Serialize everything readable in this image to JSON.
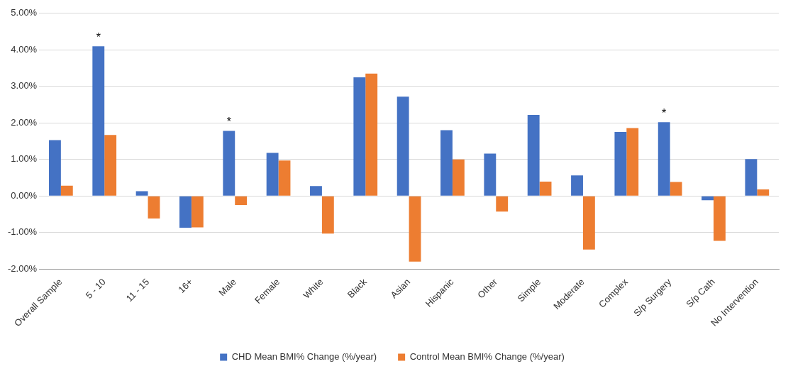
{
  "chart_data": {
    "type": "bar",
    "categories": [
      "Overall Sample",
      "5 - 10",
      "11 - 15",
      "16+",
      "Male",
      "Female",
      "White",
      "Black",
      "Asian",
      "Hispanic",
      "Other",
      "Simple",
      "Moderate",
      "Complex",
      "S/p Surgery",
      "S/p Cath",
      "No Intervention"
    ],
    "series": [
      {
        "name": "CHD Mean BMI% Change (%/year)",
        "color": "#4472c4",
        "values": [
          1.53,
          4.1,
          0.13,
          -0.87,
          1.78,
          1.18,
          0.27,
          3.25,
          2.72,
          1.8,
          1.16,
          2.22,
          0.56,
          1.75,
          2.02,
          -0.12,
          1.01
        ]
      },
      {
        "name": "Control Mean BMI% Change (%/year)",
        "color": "#ed7d31",
        "values": [
          0.28,
          1.67,
          -0.62,
          -0.86,
          -0.25,
          0.97,
          -1.03,
          3.35,
          -1.8,
          1.0,
          -0.43,
          0.39,
          -1.47,
          1.86,
          0.38,
          -1.23,
          0.18
        ]
      }
    ],
    "ylim": [
      -2,
      5
    ],
    "yticks": [
      {
        "value": -2,
        "label": "-2.00%"
      },
      {
        "value": -1,
        "label": "-1.00%"
      },
      {
        "value": 0,
        "label": "0.00%"
      },
      {
        "value": 1,
        "label": "1.00%"
      },
      {
        "value": 2,
        "label": "2.00%"
      },
      {
        "value": 3,
        "label": "3.00%"
      },
      {
        "value": 4,
        "label": "4.00%"
      },
      {
        "value": 5,
        "label": "5.00%"
      }
    ],
    "grid": "y",
    "legend": "bottom",
    "annotations": [
      {
        "text": "*",
        "x": "5 - 10",
        "y": 4.1
      },
      {
        "text": "*",
        "x": "Male",
        "y": 1.78
      },
      {
        "text": "*",
        "x": "S/p Surgery",
        "y": 2.02
      }
    ]
  }
}
